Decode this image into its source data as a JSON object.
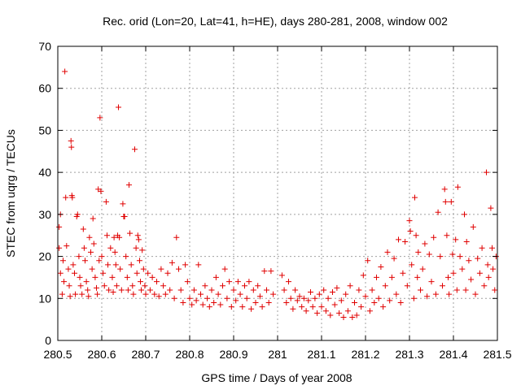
{
  "chart_data": {
    "type": "scatter",
    "title": "Rec. orid (Lon=20, Lat=41, h=HE), days 280-281, 2008, window 002",
    "xlabel": "GPS time / Days of year 2008",
    "ylabel": "STEC from uqrg / TECUs",
    "xlim": [
      280.5,
      281.5
    ],
    "ylim": [
      0,
      70
    ],
    "x_ticks": [
      280.5,
      280.6,
      280.7,
      280.8,
      280.9,
      281,
      281.1,
      281.2,
      281.3,
      281.4,
      281.5
    ],
    "x_tick_labels": [
      "280.5",
      "280.6",
      "280.7",
      "280.8",
      "280.9",
      "281",
      "281.1",
      "281.2",
      "281.3",
      "281.4",
      "281.5"
    ],
    "y_ticks": [
      0,
      10,
      20,
      30,
      40,
      50,
      60,
      70
    ],
    "y_tick_labels": [
      "0",
      "10",
      "20",
      "30",
      "40",
      "50",
      "60",
      "70"
    ],
    "grid": true,
    "marker": "+",
    "color": "#e00000",
    "points": [
      [
        280.503,
        27
      ],
      [
        280.506,
        30
      ],
      [
        280.503,
        22
      ],
      [
        280.506,
        16
      ],
      [
        280.51,
        11
      ],
      [
        280.512,
        19
      ],
      [
        280.514,
        14
      ],
      [
        280.516,
        64
      ],
      [
        280.518,
        34
      ],
      [
        280.52,
        22.5
      ],
      [
        280.524,
        17
      ],
      [
        280.526,
        13
      ],
      [
        280.528,
        10.5
      ],
      [
        280.53,
        47.5
      ],
      [
        280.531,
        46
      ],
      [
        280.532,
        34.5
      ],
      [
        280.533,
        34
      ],
      [
        280.535,
        18
      ],
      [
        280.538,
        16
      ],
      [
        280.54,
        11
      ],
      [
        280.543,
        29.5
      ],
      [
        280.545,
        30
      ],
      [
        280.548,
        20
      ],
      [
        280.55,
        15
      ],
      [
        280.552,
        13
      ],
      [
        280.555,
        11
      ],
      [
        280.558,
        26.5
      ],
      [
        280.56,
        22
      ],
      [
        280.562,
        19
      ],
      [
        280.565,
        14
      ],
      [
        280.568,
        12
      ],
      [
        280.57,
        10.5
      ],
      [
        280.572,
        24.5
      ],
      [
        280.575,
        21
      ],
      [
        280.578,
        17
      ],
      [
        280.58,
        29
      ],
      [
        280.582,
        23
      ],
      [
        280.585,
        15
      ],
      [
        280.588,
        12.5
      ],
      [
        280.59,
        11
      ],
      [
        280.592,
        36
      ],
      [
        280.594,
        19
      ],
      [
        280.596,
        53
      ],
      [
        280.598,
        35.5
      ],
      [
        280.6,
        20
      ],
      [
        280.603,
        16
      ],
      [
        280.606,
        13
      ],
      [
        280.61,
        33
      ],
      [
        280.612,
        25
      ],
      [
        280.614,
        18
      ],
      [
        280.616,
        12
      ],
      [
        280.62,
        22
      ],
      [
        280.624,
        15
      ],
      [
        280.626,
        11.5
      ],
      [
        280.628,
        24.5
      ],
      [
        280.63,
        21
      ],
      [
        280.632,
        18
      ],
      [
        280.634,
        13
      ],
      [
        280.636,
        25
      ],
      [
        280.638,
        55.5
      ],
      [
        280.64,
        24.5
      ],
      [
        280.642,
        17
      ],
      [
        280.645,
        12
      ],
      [
        280.648,
        32.5
      ],
      [
        280.65,
        29.5
      ],
      [
        280.652,
        29.5
      ],
      [
        280.655,
        20
      ],
      [
        280.658,
        15
      ],
      [
        280.66,
        12
      ],
      [
        280.662,
        37
      ],
      [
        280.664,
        25.5
      ],
      [
        280.667,
        18
      ],
      [
        280.67,
        13
      ],
      [
        280.672,
        11
      ],
      [
        280.675,
        45.5
      ],
      [
        280.678,
        22
      ],
      [
        280.68,
        16
      ],
      [
        280.682,
        25
      ],
      [
        280.684,
        24
      ],
      [
        280.686,
        19
      ],
      [
        280.688,
        14
      ],
      [
        280.69,
        12
      ],
      [
        280.692,
        21.5
      ],
      [
        280.695,
        17
      ],
      [
        280.698,
        13
      ],
      [
        280.7,
        11
      ],
      [
        280.705,
        16
      ],
      [
        280.71,
        12
      ],
      [
        280.715,
        15
      ],
      [
        280.72,
        11
      ],
      [
        280.725,
        14
      ],
      [
        280.73,
        10.5
      ],
      [
        280.735,
        17
      ],
      [
        280.74,
        13
      ],
      [
        280.745,
        11
      ],
      [
        280.75,
        16
      ],
      [
        280.755,
        12
      ],
      [
        280.76,
        18.5
      ],
      [
        280.765,
        10
      ],
      [
        280.77,
        24.5
      ],
      [
        280.775,
        17
      ],
      [
        280.78,
        12
      ],
      [
        280.785,
        9
      ],
      [
        280.79,
        18
      ],
      [
        280.795,
        14
      ],
      [
        280.8,
        10
      ],
      [
        280.805,
        8.5
      ],
      [
        280.81,
        12
      ],
      [
        280.815,
        9.5
      ],
      [
        280.82,
        18
      ],
      [
        280.825,
        11
      ],
      [
        280.83,
        8.5
      ],
      [
        280.835,
        13
      ],
      [
        280.84,
        10
      ],
      [
        280.845,
        8
      ],
      [
        280.85,
        12
      ],
      [
        280.855,
        9
      ],
      [
        280.86,
        15
      ],
      [
        280.865,
        11
      ],
      [
        280.87,
        8.5
      ],
      [
        280.875,
        13
      ],
      [
        280.88,
        17
      ],
      [
        280.885,
        10
      ],
      [
        280.89,
        14
      ],
      [
        280.895,
        8
      ],
      [
        280.9,
        12
      ],
      [
        280.905,
        9.5
      ],
      [
        280.91,
        14
      ],
      [
        280.915,
        11
      ],
      [
        280.92,
        8
      ],
      [
        280.925,
        13
      ],
      [
        280.93,
        10
      ],
      [
        280.935,
        14
      ],
      [
        280.94,
        7.5
      ],
      [
        280.945,
        12
      ],
      [
        280.95,
        9
      ],
      [
        280.955,
        13
      ],
      [
        280.96,
        10.5
      ],
      [
        280.965,
        8
      ],
      [
        280.97,
        16.5
      ],
      [
        280.975,
        12
      ],
      [
        280.98,
        9
      ],
      [
        280.985,
        16.5
      ],
      [
        280.99,
        11
      ],
      [
        281.01,
        15.5
      ],
      [
        281.015,
        12
      ],
      [
        281.02,
        9
      ],
      [
        281.025,
        14
      ],
      [
        281.03,
        10
      ],
      [
        281.035,
        7.5
      ],
      [
        281.04,
        12
      ],
      [
        281.045,
        9.5
      ],
      [
        281.05,
        10.5
      ],
      [
        281.055,
        8
      ],
      [
        281.06,
        10
      ],
      [
        281.065,
        7
      ],
      [
        281.07,
        9.5
      ],
      [
        281.075,
        11.5
      ],
      [
        281.08,
        8
      ],
      [
        281.085,
        10
      ],
      [
        281.09,
        6.5
      ],
      [
        281.095,
        11
      ],
      [
        281.1,
        8
      ],
      [
        281.105,
        12
      ],
      [
        281.11,
        7
      ],
      [
        281.115,
        10
      ],
      [
        281.12,
        6
      ],
      [
        281.125,
        11.5
      ],
      [
        281.13,
        8.5
      ],
      [
        281.135,
        12.5
      ],
      [
        281.14,
        6.5
      ],
      [
        281.145,
        9.5
      ],
      [
        281.15,
        5.5
      ],
      [
        281.155,
        11
      ],
      [
        281.16,
        7
      ],
      [
        281.165,
        13
      ],
      [
        281.17,
        5.5
      ],
      [
        281.175,
        9
      ],
      [
        281.18,
        6
      ],
      [
        281.185,
        12
      ],
      [
        281.19,
        8
      ],
      [
        281.195,
        15.5
      ],
      [
        281.2,
        10.5
      ],
      [
        281.205,
        19
      ],
      [
        281.21,
        7
      ],
      [
        281.215,
        12
      ],
      [
        281.22,
        9
      ],
      [
        281.225,
        15
      ],
      [
        281.23,
        10
      ],
      [
        281.235,
        17.5
      ],
      [
        281.24,
        8
      ],
      [
        281.245,
        13
      ],
      [
        281.25,
        21
      ],
      [
        281.255,
        9.5
      ],
      [
        281.26,
        15
      ],
      [
        281.265,
        19.5
      ],
      [
        281.27,
        11
      ],
      [
        281.275,
        24
      ],
      [
        281.28,
        9
      ],
      [
        281.285,
        16
      ],
      [
        281.29,
        23.5
      ],
      [
        281.295,
        13
      ],
      [
        281.3,
        28.5
      ],
      [
        281.302,
        26
      ],
      [
        281.305,
        18
      ],
      [
        281.31,
        10
      ],
      [
        281.312,
        34
      ],
      [
        281.315,
        25
      ],
      [
        281.318,
        15
      ],
      [
        281.32,
        21
      ],
      [
        281.325,
        12
      ],
      [
        281.33,
        17
      ],
      [
        281.335,
        23
      ],
      [
        281.34,
        10.5
      ],
      [
        281.345,
        20.5
      ],
      [
        281.35,
        14
      ],
      [
        281.355,
        24.5
      ],
      [
        281.36,
        11
      ],
      [
        281.365,
        30.5
      ],
      [
        281.37,
        20
      ],
      [
        281.375,
        13
      ],
      [
        281.38,
        36
      ],
      [
        281.382,
        33
      ],
      [
        281.385,
        25
      ],
      [
        281.388,
        15
      ],
      [
        281.39,
        11
      ],
      [
        281.395,
        33
      ],
      [
        281.398,
        20.5
      ],
      [
        281.4,
        16
      ],
      [
        281.405,
        24
      ],
      [
        281.408,
        12
      ],
      [
        281.41,
        36.5
      ],
      [
        281.415,
        20
      ],
      [
        281.42,
        17
      ],
      [
        281.425,
        30
      ],
      [
        281.428,
        12
      ],
      [
        281.43,
        23.5
      ],
      [
        281.435,
        19
      ],
      [
        281.44,
        14.5
      ],
      [
        281.445,
        27
      ],
      [
        281.45,
        11
      ],
      [
        281.455,
        19.5
      ],
      [
        281.46,
        16
      ],
      [
        281.465,
        22
      ],
      [
        281.47,
        13
      ],
      [
        281.475,
        40
      ],
      [
        281.478,
        18
      ],
      [
        281.48,
        15
      ],
      [
        281.485,
        31.5
      ],
      [
        281.488,
        22
      ],
      [
        281.49,
        17
      ],
      [
        281.494,
        12
      ],
      [
        281.497,
        20
      ]
    ]
  }
}
